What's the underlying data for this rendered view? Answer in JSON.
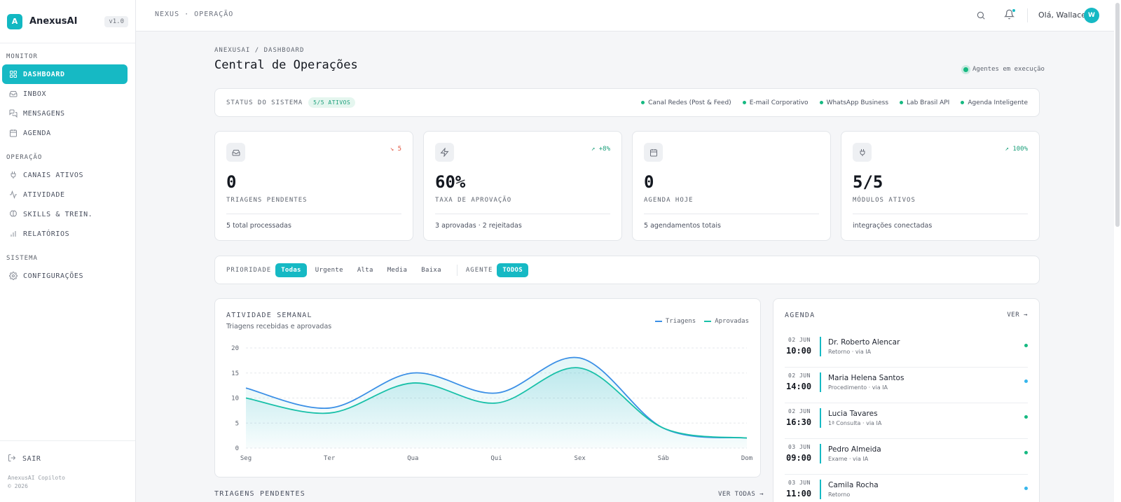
{
  "brand": {
    "logo_letter": "A",
    "name": "AnexusAI",
    "version": "v1.0"
  },
  "sidebar": {
    "sections": [
      {
        "title": "MONITOR",
        "items": [
          {
            "label": "DASHBOARD",
            "icon": "grid-icon",
            "active": true
          },
          {
            "label": "INBOX",
            "icon": "inbox-icon"
          },
          {
            "label": "MENSAGENS",
            "icon": "messages-icon"
          },
          {
            "label": "AGENDA",
            "icon": "calendar-icon"
          }
        ]
      },
      {
        "title": "OPERAÇÃO",
        "items": [
          {
            "label": "CANAIS ATIVOS",
            "icon": "plug-icon"
          },
          {
            "label": "ATIVIDADE",
            "icon": "activity-icon"
          },
          {
            "label": "SKILLS & TREIN.",
            "icon": "brain-icon"
          },
          {
            "label": "RELATÓRIOS",
            "icon": "bar-chart-icon"
          }
        ]
      },
      {
        "title": "SISTEMA",
        "items": [
          {
            "label": "CONFIGURAÇÕES",
            "icon": "gear-icon"
          }
        ]
      }
    ],
    "logout": "SAIR",
    "footer_line1": "AnexusAI Copiloto",
    "footer_line2": "© 2026"
  },
  "topbar": {
    "context": "NEXUS · OPERAÇÃO",
    "greeting": "Olá, Wallace",
    "avatar_letter": "W"
  },
  "page": {
    "breadcrumb": "ANEXUSAI / DASHBOARD",
    "title": "Central de Operações",
    "agents_status": "Agentes em execução"
  },
  "status": {
    "label": "STATUS DO SISTEMA",
    "badge": "5/5 ATIVOS",
    "items": [
      "Canal Redes (Post & Feed)",
      "E-mail Corporativo",
      "WhatsApp Business",
      "Lab Brasil API",
      "Agenda Inteligente"
    ]
  },
  "kpis": [
    {
      "icon": "inbox-icon",
      "trend": "5",
      "trend_dir": "down",
      "value": "0",
      "label": "TRIAGENS PENDENTES",
      "sub": "5 total processadas"
    },
    {
      "icon": "zap-icon",
      "trend": "+8%",
      "trend_dir": "up",
      "value": "60%",
      "label": "TAXA DE APROVAÇÃO",
      "sub": "3 aprovadas · 2 rejeitadas"
    },
    {
      "icon": "calendar-icon",
      "trend": "",
      "trend_dir": "",
      "value": "0",
      "label": "AGENDA HOJE",
      "sub": "5 agendamentos totais"
    },
    {
      "icon": "plug-icon",
      "trend": "100%",
      "trend_dir": "up",
      "value": "5/5",
      "label": "MÓDULOS ATIVOS",
      "sub": "integrações conectadas"
    }
  ],
  "filters": {
    "priority_label": "PRIORIDADE",
    "priority_options": [
      "Todas",
      "Urgente",
      "Alta",
      "Media",
      "Baixa"
    ],
    "priority_selected": 0,
    "agent_label": "AGENTE",
    "agent_selected": "TODOS"
  },
  "chart": {
    "title": "ATIVIDADE SEMANAL",
    "subtitle": "Triagens recebidas e aprovadas"
  },
  "chart_data": {
    "type": "area",
    "categories": [
      "Seg",
      "Ter",
      "Qua",
      "Qui",
      "Sex",
      "Sáb",
      "Dom"
    ],
    "series": [
      {
        "name": "Triagens",
        "values": [
          12,
          8,
          15,
          11,
          18,
          4,
          2
        ],
        "color": "#3b8fe6"
      },
      {
        "name": "Aprovadas",
        "values": [
          10,
          7,
          13,
          9,
          16,
          4,
          2
        ],
        "color": "#18c0a8"
      }
    ],
    "ylim": [
      0,
      20
    ],
    "yticks": [
      0,
      5,
      10,
      15,
      20
    ],
    "grid": true,
    "legend": "top-right"
  },
  "agenda": {
    "title": "AGENDA",
    "more": "VER",
    "items": [
      {
        "date": "02 JUN",
        "time": "10:00",
        "name": "Dr. Roberto Alencar",
        "type": "Retorno · via IA",
        "dot": "#16b981"
      },
      {
        "date": "02 JUN",
        "time": "14:00",
        "name": "Maria Helena Santos",
        "type": "Procedimento · via IA",
        "dot": "#36b6ec"
      },
      {
        "date": "02 JUN",
        "time": "16:30",
        "name": "Lucia Tavares",
        "type": "1ª Consulta · via IA",
        "dot": "#16b981"
      },
      {
        "date": "03 JUN",
        "time": "09:00",
        "name": "Pedro Almeida",
        "type": "Exame · via IA",
        "dot": "#16b981"
      },
      {
        "date": "03 JUN",
        "time": "11:00",
        "name": "Camila Rocha",
        "type": "Retorno",
        "dot": "#36b6ec"
      }
    ]
  },
  "triagens": {
    "title": "TRIAGENS PENDENTES",
    "more": "VER TODAS"
  }
}
